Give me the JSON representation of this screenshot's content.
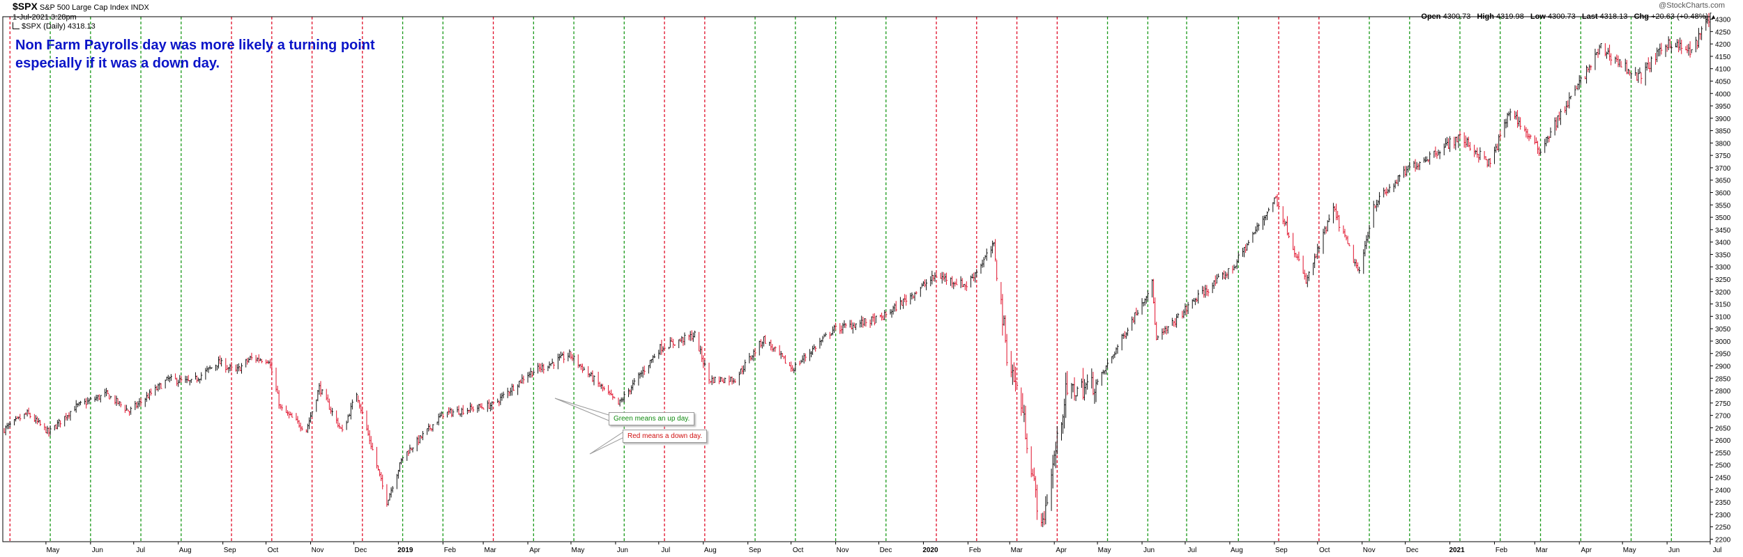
{
  "header": {
    "symbol": "$SPX",
    "name": "S&P 500 Large Cap Index",
    "exchange": "INDX",
    "datetime": "1-Jul-2021 3:28pm",
    "legend": "$SPX (Daily) 4318.13",
    "watermark": "@StockCharts.com",
    "ohlc": {
      "open_label": "Open",
      "open": "4300.73",
      "high_label": "High",
      "high": "4319.98",
      "low_label": "Low",
      "low": "4300.73",
      "last_label": "Last",
      "last": "4318.13",
      "chg_label": "Chg",
      "chg": "+20.63 (+0.48%)"
    }
  },
  "annotations": {
    "main_line1": "Non Farm Payrolls day was more likely a turning point",
    "main_line2": "especially if it was a down day.",
    "green_note": "Green means an up day.",
    "red_note": "Red means a down day."
  },
  "colors": {
    "up": "#1a9a1a",
    "down": "#e0102a",
    "bar": "#000000",
    "grid": "#d8d8d8",
    "annotation_text": "#0a14c8"
  },
  "chart_data": {
    "type": "ohlc",
    "title": "$SPX S&P 500 Large Cap Index",
    "period": "Daily",
    "ylim": [
      2200,
      4310
    ],
    "y_ticks": [
      2200,
      2250,
      2300,
      2350,
      2400,
      2450,
      2500,
      2550,
      2600,
      2650,
      2700,
      2750,
      2800,
      2850,
      2900,
      2950,
      3000,
      3050,
      3100,
      3150,
      3200,
      3250,
      3300,
      3350,
      3400,
      3450,
      3500,
      3550,
      3600,
      3650,
      3700,
      3750,
      3800,
      3850,
      3900,
      3950,
      4000,
      4050,
      4100,
      4150,
      4200,
      4250,
      4300
    ],
    "x_range": [
      "2018-04-01",
      "2021-07-01"
    ],
    "x_tick_labels": [
      {
        "date": "2018-05-01",
        "label": "May"
      },
      {
        "date": "2018-06-01",
        "label": "Jun"
      },
      {
        "date": "2018-07-01",
        "label": "Jul"
      },
      {
        "date": "2018-08-01",
        "label": "Aug"
      },
      {
        "date": "2018-09-01",
        "label": "Sep"
      },
      {
        "date": "2018-10-01",
        "label": "Oct"
      },
      {
        "date": "2018-11-01",
        "label": "Nov"
      },
      {
        "date": "2018-12-01",
        "label": "Dec"
      },
      {
        "date": "2019-01-01",
        "label": "2019",
        "bold": true
      },
      {
        "date": "2019-02-01",
        "label": "Feb"
      },
      {
        "date": "2019-03-01",
        "label": "Mar"
      },
      {
        "date": "2019-04-01",
        "label": "Apr"
      },
      {
        "date": "2019-05-01",
        "label": "May"
      },
      {
        "date": "2019-06-01",
        "label": "Jun"
      },
      {
        "date": "2019-07-01",
        "label": "Jul"
      },
      {
        "date": "2019-08-01",
        "label": "Aug"
      },
      {
        "date": "2019-09-01",
        "label": "Sep"
      },
      {
        "date": "2019-10-01",
        "label": "Oct"
      },
      {
        "date": "2019-11-01",
        "label": "Nov"
      },
      {
        "date": "2019-12-01",
        "label": "Dec"
      },
      {
        "date": "2020-01-01",
        "label": "2020",
        "bold": true
      },
      {
        "date": "2020-02-01",
        "label": "Feb"
      },
      {
        "date": "2020-03-01",
        "label": "Mar"
      },
      {
        "date": "2020-04-01",
        "label": "Apr"
      },
      {
        "date": "2020-05-01",
        "label": "May"
      },
      {
        "date": "2020-06-01",
        "label": "Jun"
      },
      {
        "date": "2020-07-01",
        "label": "Jul"
      },
      {
        "date": "2020-08-01",
        "label": "Aug"
      },
      {
        "date": "2020-09-01",
        "label": "Sep"
      },
      {
        "date": "2020-10-01",
        "label": "Oct"
      },
      {
        "date": "2020-11-01",
        "label": "Nov"
      },
      {
        "date": "2020-12-01",
        "label": "Dec"
      },
      {
        "date": "2021-01-01",
        "label": "2021",
        "bold": true
      },
      {
        "date": "2021-02-01",
        "label": "Feb"
      },
      {
        "date": "2021-03-01",
        "label": "Mar"
      },
      {
        "date": "2021-04-01",
        "label": "Apr"
      },
      {
        "date": "2021-05-01",
        "label": "May"
      },
      {
        "date": "2021-06-01",
        "label": "Jun"
      },
      {
        "date": "2021-07-01",
        "label": "Jul"
      }
    ],
    "payroll_days": [
      {
        "date": "2018-04-06",
        "color": "red"
      },
      {
        "date": "2018-05-04",
        "color": "green"
      },
      {
        "date": "2018-06-01",
        "color": "green"
      },
      {
        "date": "2018-07-06",
        "color": "green"
      },
      {
        "date": "2018-08-03",
        "color": "green"
      },
      {
        "date": "2018-09-07",
        "color": "red"
      },
      {
        "date": "2018-10-05",
        "color": "red"
      },
      {
        "date": "2018-11-02",
        "color": "red"
      },
      {
        "date": "2018-12-07",
        "color": "red"
      },
      {
        "date": "2019-01-04",
        "color": "green"
      },
      {
        "date": "2019-02-01",
        "color": "green"
      },
      {
        "date": "2019-03-08",
        "color": "red"
      },
      {
        "date": "2019-04-05",
        "color": "green"
      },
      {
        "date": "2019-05-03",
        "color": "green"
      },
      {
        "date": "2019-06-07",
        "color": "green"
      },
      {
        "date": "2019-07-05",
        "color": "red"
      },
      {
        "date": "2019-08-02",
        "color": "red"
      },
      {
        "date": "2019-09-06",
        "color": "green"
      },
      {
        "date": "2019-10-04",
        "color": "green"
      },
      {
        "date": "2019-11-01",
        "color": "green"
      },
      {
        "date": "2019-12-06",
        "color": "green"
      },
      {
        "date": "2020-01-10",
        "color": "red"
      },
      {
        "date": "2020-02-07",
        "color": "red"
      },
      {
        "date": "2020-03-06",
        "color": "red"
      },
      {
        "date": "2020-04-03",
        "color": "red"
      },
      {
        "date": "2020-05-08",
        "color": "green"
      },
      {
        "date": "2020-06-05",
        "color": "green"
      },
      {
        "date": "2020-07-02",
        "color": "green"
      },
      {
        "date": "2020-08-07",
        "color": "green"
      },
      {
        "date": "2020-09-04",
        "color": "red"
      },
      {
        "date": "2020-10-02",
        "color": "red"
      },
      {
        "date": "2020-11-06",
        "color": "green"
      },
      {
        "date": "2020-12-04",
        "color": "green"
      },
      {
        "date": "2021-01-08",
        "color": "green"
      },
      {
        "date": "2021-02-05",
        "color": "green"
      },
      {
        "date": "2021-03-05",
        "color": "green"
      },
      {
        "date": "2021-04-02",
        "color": "green"
      },
      {
        "date": "2021-05-07",
        "color": "green"
      },
      {
        "date": "2021-06-04",
        "color": "green"
      }
    ],
    "price_path": [
      [
        "2018-04-01",
        2640
      ],
      [
        "2018-04-18",
        2708
      ],
      [
        "2018-05-03",
        2630
      ],
      [
        "2018-05-21",
        2733
      ],
      [
        "2018-06-12",
        2786
      ],
      [
        "2018-06-28",
        2716
      ],
      [
        "2018-07-25",
        2846
      ],
      [
        "2018-08-10",
        2833
      ],
      [
        "2018-08-29",
        2914
      ],
      [
        "2018-09-10",
        2877
      ],
      [
        "2018-09-20",
        2930
      ],
      [
        "2018-10-03",
        2925
      ],
      [
        "2018-10-11",
        2728
      ],
      [
        "2018-10-29",
        2641
      ],
      [
        "2018-11-07",
        2813
      ],
      [
        "2018-11-23",
        2633
      ],
      [
        "2018-12-03",
        2790
      ],
      [
        "2018-12-24",
        2351
      ],
      [
        "2019-01-04",
        2532
      ],
      [
        "2019-02-01",
        2706
      ],
      [
        "2019-03-08",
        2743
      ],
      [
        "2019-04-01",
        2867
      ],
      [
        "2019-04-30",
        2945
      ],
      [
        "2019-06-03",
        2744
      ],
      [
        "2019-07-02",
        2973
      ],
      [
        "2019-07-26",
        3025
      ],
      [
        "2019-08-05",
        2844
      ],
      [
        "2019-08-23",
        2847
      ],
      [
        "2019-09-12",
        3009
      ],
      [
        "2019-10-02",
        2887
      ],
      [
        "2019-10-30",
        3046
      ],
      [
        "2019-12-03",
        3093
      ],
      [
        "2020-01-10",
        3265
      ],
      [
        "2020-01-31",
        3225
      ],
      [
        "2020-02-19",
        3386
      ],
      [
        "2020-02-28",
        2954
      ],
      [
        "2020-03-09",
        2746
      ],
      [
        "2020-03-23",
        2237
      ],
      [
        "2020-04-09",
        2790
      ],
      [
        "2020-05-01",
        2830
      ],
      [
        "2020-06-08",
        3232
      ],
      [
        "2020-06-11",
        3002
      ],
      [
        "2020-07-08",
        3169
      ],
      [
        "2020-08-03",
        3294
      ],
      [
        "2020-09-02",
        3580
      ],
      [
        "2020-09-23",
        3237
      ],
      [
        "2020-10-12",
        3534
      ],
      [
        "2020-10-30",
        3270
      ],
      [
        "2020-11-09",
        3550
      ],
      [
        "2020-12-04",
        3699
      ],
      [
        "2021-01-08",
        3824
      ],
      [
        "2021-01-29",
        3714
      ],
      [
        "2021-02-12",
        3934
      ],
      [
        "2021-03-04",
        3768
      ],
      [
        "2021-04-16",
        4185
      ],
      [
        "2021-05-12",
        4063
      ],
      [
        "2021-06-02",
        4208
      ],
      [
        "2021-06-18",
        4166
      ],
      [
        "2021-07-01",
        4318
      ]
    ]
  }
}
